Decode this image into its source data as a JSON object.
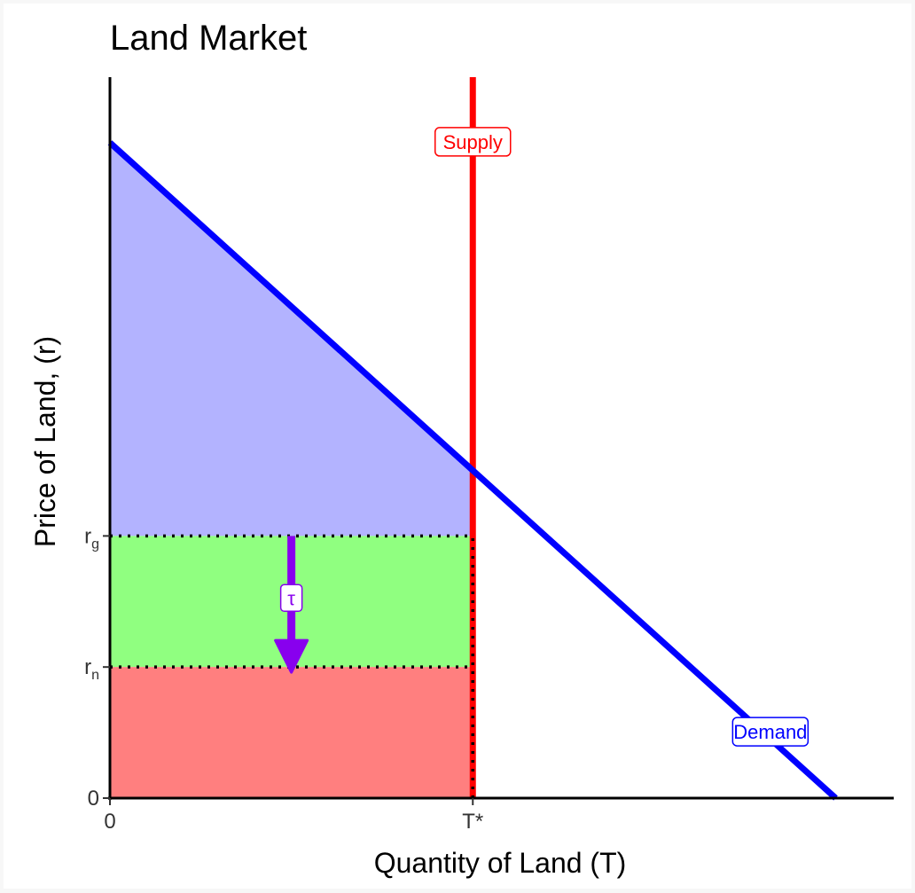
{
  "chart_data": {
    "type": "line",
    "title": "Land Market",
    "xlabel": "Quantity of Land (T)",
    "ylabel": "Price of Land, (r)",
    "xlim": [
      0,
      10.8
    ],
    "ylim": [
      0,
      11
    ],
    "x_ticks": [
      {
        "value": 0,
        "label": "0"
      },
      {
        "value": 5,
        "label": "T*"
      }
    ],
    "y_ticks": [
      {
        "value": 0,
        "label": "0",
        "sub": ""
      },
      {
        "value": 2,
        "label": "r",
        "sub": "n"
      },
      {
        "value": 4,
        "label": "r",
        "sub": "g"
      }
    ],
    "grid": false,
    "series": [
      {
        "name": "Supply",
        "color": "#ff0000",
        "x": [
          5,
          5
        ],
        "y": [
          0,
          11
        ]
      },
      {
        "name": "Demand",
        "color": "#0000ff",
        "x": [
          0,
          10
        ],
        "y": [
          10,
          0
        ]
      }
    ],
    "labels": [
      {
        "text": "Supply",
        "color": "#ff0000",
        "x": 5,
        "y": 10
      },
      {
        "text": "Demand",
        "color": "#0000ff",
        "x": 9.1,
        "y": 1
      }
    ],
    "regions": [
      {
        "color": "#b3b3ff",
        "points": [
          [
            0,
            10
          ],
          [
            5,
            5
          ],
          [
            5,
            4
          ],
          [
            0,
            4
          ]
        ]
      },
      {
        "color": "#90ff80",
        "points": [
          [
            0,
            4
          ],
          [
            5,
            4
          ],
          [
            5,
            2
          ],
          [
            0,
            2
          ]
        ]
      },
      {
        "color": "#ff7f7f",
        "points": [
          [
            0,
            2
          ],
          [
            5,
            2
          ],
          [
            5,
            0
          ],
          [
            0,
            0
          ]
        ]
      }
    ],
    "dotted_lines": [
      {
        "points": [
          [
            0,
            4
          ],
          [
            5,
            4
          ]
        ]
      },
      {
        "points": [
          [
            0,
            2
          ],
          [
            5,
            2
          ]
        ]
      },
      {
        "points": [
          [
            5,
            0
          ],
          [
            5,
            4
          ]
        ]
      }
    ],
    "arrow": {
      "label": "τ",
      "color": "#8800ee",
      "x": 2.5,
      "from": 4,
      "to": 2
    }
  }
}
